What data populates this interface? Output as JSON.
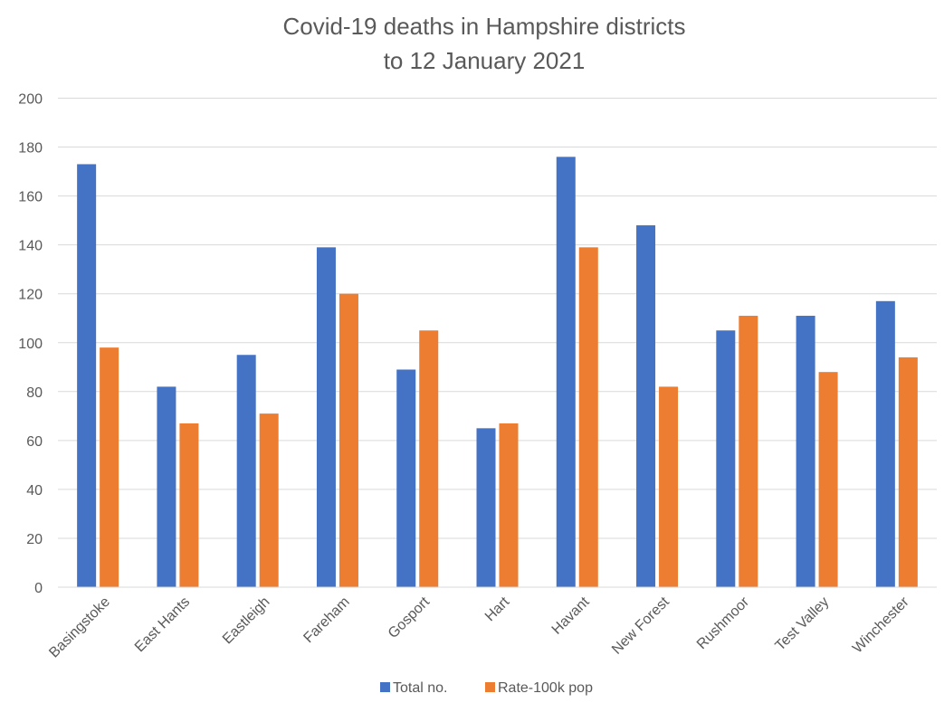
{
  "chart_data": {
    "type": "bar",
    "title": [
      "Covid-19 deaths in Hampshire districts",
      "to 12 January 2021"
    ],
    "xlabel": "",
    "ylabel": "",
    "ylim": [
      0,
      200
    ],
    "yticks": [
      0,
      20,
      40,
      60,
      80,
      100,
      120,
      140,
      160,
      180,
      200
    ],
    "grid": true,
    "legend_position": "bottom",
    "categories": [
      "Basingstoke",
      "East Hants",
      "Eastleigh",
      "Fareham",
      "Gosport",
      "Hart",
      "Havant",
      "New Forest",
      "Rushmoor",
      "Test Valley",
      "Winchester"
    ],
    "series": [
      {
        "name": "Total no.",
        "color": "#4472c4",
        "values": [
          173,
          82,
          95,
          139,
          89,
          65,
          176,
          148,
          105,
          111,
          117
        ]
      },
      {
        "name": "Rate-100k pop",
        "color": "#ed7d31",
        "values": [
          98,
          67,
          71,
          120,
          105,
          67,
          139,
          82,
          111,
          88,
          94
        ]
      }
    ]
  }
}
